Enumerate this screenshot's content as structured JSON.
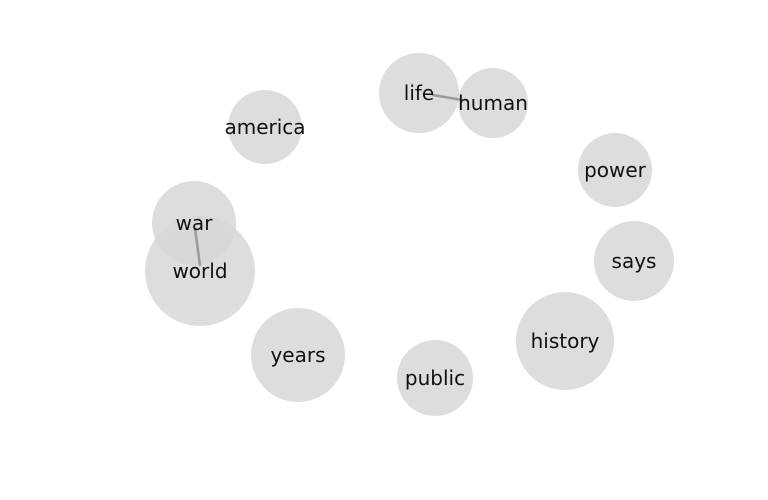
{
  "graph": {
    "nodes": [
      {
        "id": "life",
        "label": "life"
      },
      {
        "id": "human",
        "label": "human"
      },
      {
        "id": "america",
        "label": "america"
      },
      {
        "id": "power",
        "label": "power"
      },
      {
        "id": "war",
        "label": "war"
      },
      {
        "id": "world",
        "label": "world"
      },
      {
        "id": "says",
        "label": "says"
      },
      {
        "id": "history",
        "label": "history"
      },
      {
        "id": "years",
        "label": "years"
      },
      {
        "id": "public",
        "label": "public"
      }
    ],
    "edges": [
      {
        "source": "life",
        "target": "human"
      },
      {
        "source": "war",
        "target": "world"
      }
    ],
    "colors": {
      "node_fill": "#d7d7d7",
      "edge": "#9a9a9a",
      "label": "#111111"
    }
  }
}
